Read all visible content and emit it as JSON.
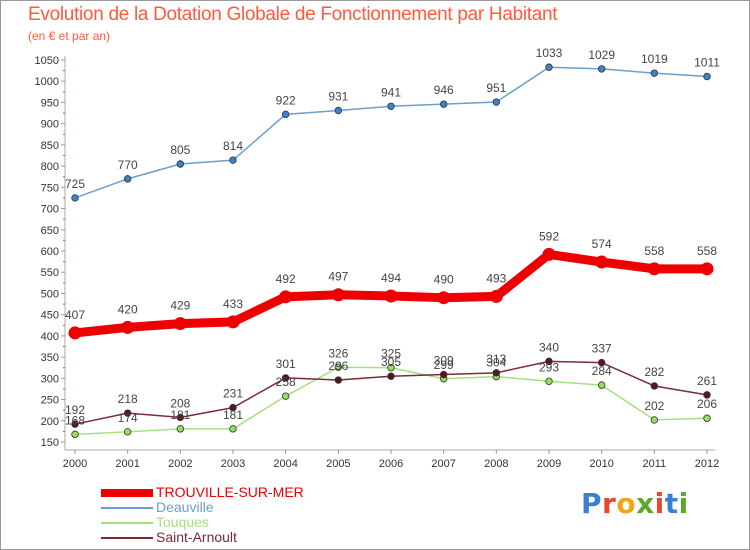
{
  "chart_data": {
    "type": "line",
    "title": "Evolution de la Dotation Globale de Fonctionnement par Habitant",
    "subtitle": "(en € et par an)",
    "x": [
      "2000",
      "2001",
      "2002",
      "2003",
      "2004",
      "2005",
      "2006",
      "2007",
      "2008",
      "2009",
      "2010",
      "2011",
      "2012"
    ],
    "ylim": [
      150,
      1050
    ],
    "yticks": [
      150,
      200,
      250,
      300,
      350,
      400,
      450,
      500,
      550,
      600,
      650,
      700,
      750,
      800,
      850,
      900,
      950,
      1000,
      1050
    ],
    "grid": false,
    "legend_position": "bottom-left",
    "series": [
      {
        "name": "Deauville",
        "color": "#6a9fcf",
        "marker_color": "#3b83c6",
        "values": [
          725,
          770,
          805,
          814,
          922,
          931,
          941,
          946,
          951,
          1033,
          1029,
          1019,
          1011
        ]
      },
      {
        "name": "Touques",
        "color": "#a6df82",
        "marker_color": "#94e05a",
        "values": [
          168,
          174,
          181,
          181,
          258,
          326,
          325,
          299,
          304,
          293,
          284,
          202,
          206
        ]
      },
      {
        "name": "Saint-Arnoult",
        "color": "#7a2b35",
        "marker_color": "#5a1520",
        "values": [
          192,
          218,
          208,
          231,
          301,
          296,
          305,
          309,
          313,
          340,
          337,
          282,
          261
        ]
      },
      {
        "name": "TROUVILLE-SUR-MER",
        "color": "#ee0000",
        "marker_color": "#ee0000",
        "values": [
          407,
          420,
          429,
          433,
          492,
          497,
          494,
          490,
          493,
          592,
          574,
          558,
          558
        ]
      }
    ],
    "legend": [
      {
        "name": "TROUVILLE-SUR-MER",
        "color": "#ee0000",
        "weight": "thick"
      },
      {
        "name": "Deauville",
        "color": "#6a9fcf",
        "weight": "thin"
      },
      {
        "name": "Touques",
        "color": "#a6df82",
        "weight": "thin"
      },
      {
        "name": "Saint-Arnoult",
        "color": "#7a2b35",
        "weight": "thin"
      }
    ]
  },
  "brand": {
    "text": "Proxiti",
    "letter_colors": [
      "#3b7fd1",
      "#e8472a",
      "#f2a51a",
      "#5aa82e",
      "#e8472a",
      "#3b7fd1",
      "#5aa82e"
    ]
  },
  "colors": {
    "title": "#ff5a3c",
    "axis": "#999999",
    "label": "#333333"
  }
}
